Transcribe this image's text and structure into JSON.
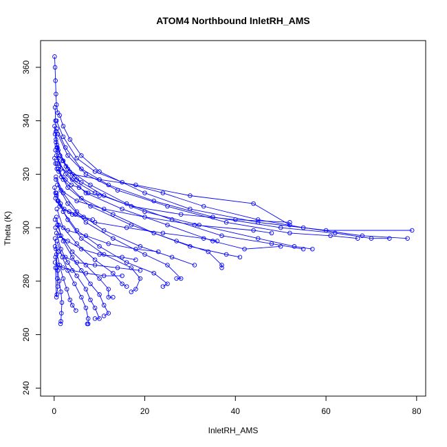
{
  "chart_data": {
    "type": "scatter",
    "title": "ATOM4 Northbound InletRH_AMS",
    "xlabel": "InletRH_AMS",
    "ylabel": "Theta (K)",
    "xlim": [
      -3,
      82
    ],
    "ylim": [
      237,
      370
    ],
    "xticks": [
      "0",
      "20",
      "40",
      "60",
      "80"
    ],
    "yticks": [
      "240",
      "260",
      "280",
      "300",
      "320",
      "340",
      "360"
    ],
    "grid": false,
    "legend": "none",
    "series_style": "points-connected-by-lines",
    "color": "#0000ff",
    "series": [
      {
        "values": [
          [
            0.1,
            364
          ],
          [
            0.2,
            360
          ],
          [
            0.3,
            355
          ],
          [
            0.4,
            350
          ],
          [
            0.5,
            346
          ],
          [
            0.8,
            343
          ],
          [
            1.2,
            342
          ],
          [
            2,
            338
          ],
          [
            3.5,
            333
          ],
          [
            6,
            327
          ],
          [
            10,
            321
          ],
          [
            20,
            313
          ],
          [
            30,
            307
          ],
          [
            45,
            302
          ],
          [
            60,
            299
          ],
          [
            79,
            299
          ]
        ]
      },
      {
        "values": [
          [
            0.5,
            340
          ],
          [
            2,
            334
          ],
          [
            5,
            326
          ],
          [
            9,
            321
          ],
          [
            15,
            317
          ],
          [
            24,
            313
          ],
          [
            33,
            308
          ],
          [
            45,
            303
          ],
          [
            55,
            300
          ],
          [
            68,
            297
          ],
          [
            78,
            296
          ]
        ]
      },
      {
        "values": [
          [
            0.6,
            337
          ],
          [
            2.5,
            330
          ],
          [
            6,
            322
          ],
          [
            12,
            316
          ],
          [
            22,
            310
          ],
          [
            35,
            304
          ],
          [
            50,
            300
          ],
          [
            62,
            298
          ],
          [
            70,
            296
          ],
          [
            74,
            296
          ]
        ]
      },
      {
        "values": [
          [
            0.8,
            335
          ],
          [
            3,
            327
          ],
          [
            7,
            320
          ],
          [
            14,
            314
          ],
          [
            25,
            308
          ],
          [
            38,
            302
          ],
          [
            52,
            298
          ],
          [
            61,
            297
          ],
          [
            67,
            296
          ]
        ]
      },
      {
        "values": [
          [
            0.4,
            332
          ],
          [
            2,
            325
          ],
          [
            5,
            318
          ],
          [
            11,
            312
          ],
          [
            20,
            306
          ],
          [
            32,
            301
          ],
          [
            45,
            296
          ],
          [
            53,
            293
          ],
          [
            57,
            292
          ]
        ]
      },
      {
        "values": [
          [
            0.7,
            330
          ],
          [
            3,
            322
          ],
          [
            8,
            316
          ],
          [
            16,
            309
          ],
          [
            26,
            303
          ],
          [
            37,
            297
          ],
          [
            48,
            294
          ],
          [
            55,
            292
          ]
        ]
      },
      {
        "values": [
          [
            0.5,
            327
          ],
          [
            2.5,
            320
          ],
          [
            7,
            313
          ],
          [
            15,
            307
          ],
          [
            25,
            301
          ],
          [
            35,
            295
          ],
          [
            42,
            292
          ],
          [
            50,
            293
          ]
        ]
      },
      {
        "values": [
          [
            0.6,
            324
          ],
          [
            2,
            318
          ],
          [
            6,
            311
          ],
          [
            13,
            305
          ],
          [
            22,
            298
          ],
          [
            30,
            293
          ],
          [
            38,
            290
          ],
          [
            41,
            289
          ]
        ]
      },
      {
        "values": [
          [
            0.9,
            322
          ],
          [
            3,
            315
          ],
          [
            8,
            308
          ],
          [
            17,
            301
          ],
          [
            27,
            295
          ],
          [
            34,
            291
          ],
          [
            37,
            286
          ],
          [
            37,
            285
          ]
        ]
      },
      {
        "values": [
          [
            0.4,
            319
          ],
          [
            2,
            313
          ],
          [
            5,
            306
          ],
          [
            11,
            299
          ],
          [
            19,
            293
          ],
          [
            26,
            289
          ],
          [
            31,
            286
          ]
        ]
      },
      {
        "values": [
          [
            0.7,
            316
          ],
          [
            3,
            309
          ],
          [
            7,
            302
          ],
          [
            13,
            296
          ],
          [
            20,
            290
          ],
          [
            25,
            286
          ],
          [
            28,
            281
          ],
          [
            27,
            281
          ]
        ]
      },
      {
        "values": [
          [
            0.5,
            313
          ],
          [
            2,
            306
          ],
          [
            5,
            299
          ],
          [
            10,
            293
          ],
          [
            16,
            287
          ],
          [
            22,
            283
          ],
          [
            25,
            279
          ],
          [
            24,
            278
          ]
        ]
      },
      {
        "values": [
          [
            0.8,
            310
          ],
          [
            3,
            303
          ],
          [
            6,
            296
          ],
          [
            11,
            290
          ],
          [
            17,
            285
          ],
          [
            19,
            281
          ],
          [
            18,
            277
          ],
          [
            17,
            276
          ]
        ]
      },
      {
        "values": [
          [
            0.6,
            307
          ],
          [
            2,
            300
          ],
          [
            5,
            294
          ],
          [
            9,
            288
          ],
          [
            13,
            283
          ],
          [
            15,
            279
          ],
          [
            16,
            278
          ]
        ]
      },
      {
        "values": [
          [
            0.5,
            304
          ],
          [
            1.5,
            297
          ],
          [
            4,
            291
          ],
          [
            7,
            286
          ],
          [
            10,
            281
          ],
          [
            12,
            277
          ],
          [
            12,
            274
          ],
          [
            13,
            274
          ]
        ]
      },
      {
        "values": [
          [
            0.7,
            301
          ],
          [
            2,
            295
          ],
          [
            4,
            289
          ],
          [
            6,
            284
          ],
          [
            8,
            279
          ],
          [
            10,
            275
          ],
          [
            11,
            271
          ],
          [
            12,
            268
          ],
          [
            11,
            267
          ]
        ]
      },
      {
        "values": [
          [
            0.5,
            298
          ],
          [
            1.5,
            292
          ],
          [
            3,
            287
          ],
          [
            5,
            282
          ],
          [
            7,
            277
          ],
          [
            8,
            273
          ],
          [
            9,
            270
          ],
          [
            10,
            266
          ],
          [
            9,
            266
          ]
        ]
      },
      {
        "values": [
          [
            0.6,
            295
          ],
          [
            1.8,
            289
          ],
          [
            3,
            284
          ],
          [
            4.5,
            279
          ],
          [
            6,
            274
          ],
          [
            7,
            270
          ],
          [
            7.5,
            266
          ],
          [
            7.5,
            264
          ],
          [
            7.3,
            264
          ]
        ]
      },
      {
        "values": [
          [
            0.4,
            292
          ],
          [
            1.2,
            286
          ],
          [
            2,
            281
          ],
          [
            2.8,
            277
          ],
          [
            3.5,
            273
          ],
          [
            4,
            271
          ],
          [
            4.8,
            269
          ]
        ]
      },
      {
        "values": [
          [
            0.3,
            289
          ],
          [
            0.8,
            284
          ],
          [
            1.1,
            280
          ],
          [
            1.5,
            276
          ],
          [
            1.7,
            272
          ],
          [
            1.6,
            268
          ],
          [
            1.5,
            265
          ],
          [
            1.4,
            264
          ]
        ]
      },
      {
        "values": [
          [
            0.2,
            296
          ],
          [
            0.5,
            290
          ],
          [
            0.6,
            285
          ],
          [
            0.7,
            281
          ],
          [
            0.8,
            278
          ],
          [
            0.6,
            275
          ],
          [
            0.5,
            274
          ],
          [
            0.3,
            285
          ]
        ]
      },
      {
        "values": [
          [
            0.2,
            345
          ],
          [
            0.3,
            340
          ],
          [
            0.4,
            336
          ],
          [
            0.6,
            330
          ],
          [
            0.9,
            326
          ],
          [
            1.5,
            322
          ],
          [
            4,
            320
          ],
          [
            10,
            318
          ],
          [
            18,
            316
          ],
          [
            30,
            312
          ],
          [
            44,
            309
          ],
          [
            52,
            301
          ]
        ]
      },
      {
        "values": [
          [
            0.3,
            329
          ],
          [
            1,
            324
          ],
          [
            4,
            318
          ],
          [
            9,
            313
          ],
          [
            17,
            308
          ],
          [
            28,
            305
          ],
          [
            40,
            303
          ],
          [
            52,
            302
          ]
        ]
      },
      {
        "values": [
          [
            0.4,
            318
          ],
          [
            1.5,
            314
          ],
          [
            5,
            310
          ],
          [
            11,
            307
          ],
          [
            20,
            304
          ],
          [
            31,
            301
          ],
          [
            44,
            299
          ],
          [
            48,
            298
          ]
        ]
      },
      {
        "values": [
          [
            0.3,
            311
          ],
          [
            1.2,
            308
          ],
          [
            4,
            305
          ],
          [
            9,
            302
          ],
          [
            16,
            300
          ],
          [
            24,
            298
          ],
          [
            33,
            296
          ],
          [
            36,
            295
          ]
        ]
      },
      {
        "values": [
          [
            0.2,
            303
          ],
          [
            1,
            301
          ],
          [
            3,
            299
          ],
          [
            7,
            297
          ],
          [
            12,
            294
          ],
          [
            18,
            292
          ],
          [
            23,
            291
          ]
        ]
      },
      {
        "values": [
          [
            0.3,
            300
          ],
          [
            1.1,
            297
          ],
          [
            3,
            295
          ],
          [
            6,
            292
          ],
          [
            10,
            290
          ],
          [
            15,
            289
          ],
          [
            18,
            288
          ]
        ]
      },
      {
        "values": [
          [
            0.2,
            293
          ],
          [
            0.9,
            291
          ],
          [
            2.5,
            289
          ],
          [
            5,
            287
          ],
          [
            9,
            286
          ],
          [
            14,
            285
          ],
          [
            19,
            284
          ]
        ]
      },
      {
        "values": [
          [
            0.2,
            287
          ],
          [
            0.8,
            286
          ],
          [
            2,
            285
          ],
          [
            4,
            284
          ],
          [
            7,
            283
          ],
          [
            11,
            282
          ],
          [
            15,
            282
          ]
        ]
      },
      {
        "values": [
          [
            0.1,
            338
          ],
          [
            0.2,
            335
          ],
          [
            0.4,
            333
          ],
          [
            0.6,
            331
          ],
          [
            0.9,
            329
          ],
          [
            1.3,
            327
          ],
          [
            1.9,
            325
          ],
          [
            2.6,
            323
          ],
          [
            3.4,
            321
          ],
          [
            4.5,
            319
          ],
          [
            6,
            317
          ]
        ]
      },
      {
        "values": [
          [
            0.1,
            326
          ],
          [
            0.3,
            324
          ],
          [
            0.6,
            322
          ],
          [
            1,
            321
          ],
          [
            1.6,
            319
          ],
          [
            2.5,
            318
          ],
          [
            3.8,
            316
          ],
          [
            5.5,
            315
          ],
          [
            7.5,
            313
          ],
          [
            10,
            312
          ]
        ]
      },
      {
        "values": [
          [
            0.1,
            315
          ],
          [
            0.3,
            313
          ],
          [
            0.5,
            312
          ],
          [
            0.9,
            310
          ],
          [
            1.4,
            309
          ],
          [
            2.2,
            307
          ],
          [
            3.3,
            306
          ],
          [
            4.7,
            305
          ],
          [
            6.5,
            304
          ],
          [
            8.5,
            303
          ]
        ]
      }
    ]
  }
}
